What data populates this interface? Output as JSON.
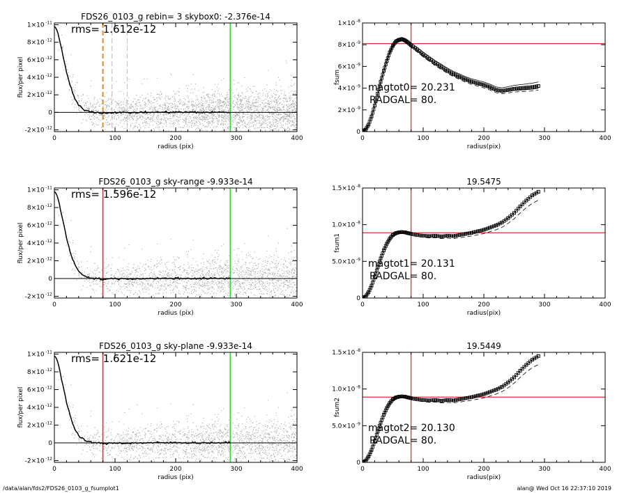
{
  "footer": {
    "left": "/data/alan/fds2/FDS26_0103_g_fsumplot1",
    "right": "alan@  Wed Oct 16 22:37:10 2019"
  },
  "chart_data": [
    {
      "type": "scatter",
      "title": "FDS26_0103_g rebin= 3    skybox0: -2.376e-14",
      "xlabel": "radius (pix)",
      "ylabel": "flux/per pixel",
      "xlim": [
        0,
        400
      ],
      "ylim": [
        -2.2e-12,
        1.02e-11
      ],
      "xticks": [
        0,
        100,
        200,
        300,
        400
      ],
      "yticks": [
        {
          "value": -2e-12,
          "m": "-2",
          "e": "-12"
        },
        {
          "value": 0,
          "m": "0",
          "e": ""
        },
        {
          "value": 2e-12,
          "m": "2",
          "e": "-12"
        },
        {
          "value": 4e-12,
          "m": "4",
          "e": "-12"
        },
        {
          "value": 6e-12,
          "m": "6",
          "e": "-12"
        },
        {
          "value": 8e-12,
          "m": "8",
          "e": "-12"
        },
        {
          "value": 1e-11,
          "m": "1",
          "e": "-11"
        }
      ],
      "annotation": "rms= 1.612e-12",
      "vlines": [
        {
          "x": 80,
          "color": "#e08a2a",
          "style": "dashed"
        },
        {
          "x": 95,
          "color": "#bbbbbb",
          "style": "dashed"
        },
        {
          "x": 120,
          "color": "#bbbbbb",
          "style": "dashed"
        },
        {
          "x": 290,
          "color": "#3cd23c",
          "style": "solid"
        }
      ],
      "profile": [
        [
          0,
          9.8e-12
        ],
        [
          3,
          9.6e-12
        ],
        [
          6,
          9e-12
        ],
        [
          10,
          7.8e-12
        ],
        [
          15,
          6.2e-12
        ],
        [
          20,
          4.6e-12
        ],
        [
          25,
          3.3e-12
        ],
        [
          30,
          2.2e-12
        ],
        [
          35,
          1.4e-12
        ],
        [
          40,
          8e-13
        ],
        [
          45,
          5e-13
        ],
        [
          50,
          3e-13
        ],
        [
          55,
          1.5e-13
        ],
        [
          60,
          8e-14
        ],
        [
          70,
          0
        ],
        [
          80,
          -1e-13
        ],
        [
          100,
          0
        ],
        [
          120,
          -5e-14
        ],
        [
          150,
          0
        ],
        [
          200,
          2e-14
        ],
        [
          250,
          0
        ],
        [
          290,
          1e-14
        ]
      ]
    },
    {
      "type": "line",
      "title": "",
      "xlabel": "radius(pix)",
      "ylabel": "fsum",
      "xlim": [
        0,
        400
      ],
      "ylim": [
        0,
        1e-08
      ],
      "xticks": [
        0,
        100,
        200,
        300,
        400
      ],
      "yticks": [
        {
          "value": 0,
          "m": "0",
          "e": ""
        },
        {
          "value": 2e-09,
          "m": "2",
          "e": "-9"
        },
        {
          "value": 4e-09,
          "m": "4",
          "e": "-9"
        },
        {
          "value": 6e-09,
          "m": "6",
          "e": "-9"
        },
        {
          "value": 8e-09,
          "m": "8",
          "e": "-9"
        },
        {
          "value": 1e-08,
          "m": "1",
          "e": "-8"
        }
      ],
      "hline": 8.1e-09,
      "vline": 80,
      "annotations": [
        "magtot0=  20.231",
        "RADGAL=    80."
      ],
      "series": [
        {
          "x": [
            0,
            5,
            10,
            15,
            20,
            25,
            30,
            35,
            40,
            45,
            50,
            55,
            60,
            65,
            70,
            75,
            80,
            90,
            100,
            110,
            120,
            130,
            140,
            150,
            160,
            170,
            180,
            190,
            200,
            210,
            220,
            230,
            240,
            250,
            260,
            270,
            280,
            290
          ],
          "y": [
            0,
            1.8e-10,
            6.5e-10,
            1.4e-09,
            2.4e-09,
            3.5e-09,
            4.6e-09,
            5.6e-09,
            6.5e-09,
            7.3e-09,
            7.9e-09,
            8.3e-09,
            8.45e-09,
            8.5e-09,
            8.4e-09,
            8.2e-09,
            7.95e-09,
            7.55e-09,
            7.1e-09,
            6.7e-09,
            6.3e-09,
            5.95e-09,
            5.6e-09,
            5.3e-09,
            5.05e-09,
            4.8e-09,
            4.6e-09,
            4.45e-09,
            4.3e-09,
            4.1e-09,
            3.85e-09,
            3.75e-09,
            3.85e-09,
            3.95e-09,
            4e-09,
            4.05e-09,
            4.1e-09,
            4.2e-09
          ]
        }
      ]
    },
    {
      "type": "scatter",
      "title": "FDS26_0103_g sky-range -9.933e-14",
      "xlabel": "radius (pix)",
      "ylabel": "flux/per pixel",
      "xlim": [
        0,
        400
      ],
      "ylim": [
        -2.2e-12,
        1.02e-11
      ],
      "xticks": [
        0,
        100,
        200,
        300,
        400
      ],
      "yticks": [
        {
          "value": -2e-12,
          "m": "-2",
          "e": "-12"
        },
        {
          "value": 0,
          "m": "0",
          "e": ""
        },
        {
          "value": 2e-12,
          "m": "2",
          "e": "-12"
        },
        {
          "value": 4e-12,
          "m": "4",
          "e": "-12"
        },
        {
          "value": 6e-12,
          "m": "6",
          "e": "-12"
        },
        {
          "value": 8e-12,
          "m": "8",
          "e": "-12"
        },
        {
          "value": 1e-11,
          "m": "1",
          "e": "-11"
        }
      ],
      "annotation": "rms= 1.596e-12",
      "vlines": [
        {
          "x": 80,
          "color": "#e03030",
          "style": "solid"
        },
        {
          "x": 290,
          "color": "#3cd23c",
          "style": "solid"
        }
      ],
      "profile": [
        [
          0,
          9.8e-12
        ],
        [
          3,
          9.6e-12
        ],
        [
          6,
          9e-12
        ],
        [
          10,
          7.8e-12
        ],
        [
          15,
          6.2e-12
        ],
        [
          20,
          4.6e-12
        ],
        [
          25,
          3.3e-12
        ],
        [
          30,
          2.2e-12
        ],
        [
          35,
          1.4e-12
        ],
        [
          40,
          8e-13
        ],
        [
          45,
          5e-13
        ],
        [
          50,
          3e-13
        ],
        [
          55,
          1.5e-13
        ],
        [
          60,
          8e-14
        ],
        [
          70,
          0
        ],
        [
          80,
          -1e-13
        ],
        [
          100,
          0
        ],
        [
          120,
          -5e-14
        ],
        [
          150,
          0
        ],
        [
          200,
          2e-14
        ],
        [
          250,
          0
        ],
        [
          290,
          1e-14
        ]
      ]
    },
    {
      "type": "line",
      "title": "19.5475",
      "xlabel": "radius(pix)",
      "ylabel": "fsum1",
      "xlim": [
        0,
        400
      ],
      "ylim": [
        0,
        1.5e-08
      ],
      "xticks": [
        0,
        100,
        200,
        300,
        400
      ],
      "yticks": [
        {
          "value": 0,
          "m": "0",
          "e": ""
        },
        {
          "value": 5e-09,
          "m": "5.0",
          "e": "-9"
        },
        {
          "value": 1e-08,
          "m": "1.0",
          "e": "-8"
        },
        {
          "value": 1.5e-08,
          "m": "1.5",
          "e": "-8"
        }
      ],
      "hline": 8.9e-09,
      "vline": 80,
      "annotations": [
        "magtot1=  20.131",
        "RADGAL=    80."
      ],
      "series": [
        {
          "x": [
            0,
            5,
            10,
            15,
            20,
            25,
            30,
            35,
            40,
            45,
            50,
            55,
            60,
            65,
            70,
            75,
            80,
            90,
            100,
            110,
            120,
            130,
            140,
            150,
            160,
            170,
            180,
            190,
            200,
            210,
            220,
            230,
            240,
            250,
            260,
            270,
            280,
            290
          ],
          "y": [
            0,
            2e-10,
            8e-10,
            1.7e-09,
            2.9e-09,
            4.2e-09,
            5.4e-09,
            6.5e-09,
            7.4e-09,
            8.1e-09,
            8.6e-09,
            8.85e-09,
            8.95e-09,
            9e-09,
            8.95e-09,
            8.85e-09,
            8.75e-09,
            8.6e-09,
            8.5e-09,
            8.45e-09,
            8.5e-09,
            8.4e-09,
            8.5e-09,
            8.45e-09,
            8.6e-09,
            8.75e-09,
            8.9e-09,
            9.1e-09,
            9.3e-09,
            9.6e-09,
            9.9e-09,
            1.03e-08,
            1.09e-08,
            1.16e-08,
            1.25e-08,
            1.33e-08,
            1.4e-08,
            1.45e-08
          ]
        }
      ]
    },
    {
      "type": "scatter",
      "title": "FDS26_0103_g sky-plane -9.933e-14",
      "xlabel": "radius (pix)",
      "ylabel": "flux/per pixel",
      "xlim": [
        0,
        400
      ],
      "ylim": [
        -2.2e-12,
        1.02e-11
      ],
      "xticks": [
        0,
        100,
        200,
        300,
        400
      ],
      "yticks": [
        {
          "value": -2e-12,
          "m": "-2",
          "e": "-12"
        },
        {
          "value": 0,
          "m": "0",
          "e": ""
        },
        {
          "value": 2e-12,
          "m": "2",
          "e": "-12"
        },
        {
          "value": 4e-12,
          "m": "4",
          "e": "-12"
        },
        {
          "value": 6e-12,
          "m": "6",
          "e": "-12"
        },
        {
          "value": 8e-12,
          "m": "8",
          "e": "-12"
        },
        {
          "value": 1e-11,
          "m": "1",
          "e": "-11"
        }
      ],
      "annotation": "rms= 1.621e-12",
      "vlines": [
        {
          "x": 80,
          "color": "#e03030",
          "style": "solid"
        },
        {
          "x": 290,
          "color": "#3cd23c",
          "style": "solid"
        }
      ],
      "profile": [
        [
          0,
          9.8e-12
        ],
        [
          3,
          9.6e-12
        ],
        [
          6,
          9e-12
        ],
        [
          10,
          7.8e-12
        ],
        [
          15,
          6.2e-12
        ],
        [
          20,
          4.6e-12
        ],
        [
          25,
          3.3e-12
        ],
        [
          30,
          2.2e-12
        ],
        [
          35,
          1.4e-12
        ],
        [
          40,
          8e-13
        ],
        [
          45,
          5e-13
        ],
        [
          50,
          3e-13
        ],
        [
          55,
          1.5e-13
        ],
        [
          60,
          8e-14
        ],
        [
          70,
          0
        ],
        [
          80,
          -1e-13
        ],
        [
          100,
          0
        ],
        [
          120,
          -5e-14
        ],
        [
          150,
          0
        ],
        [
          200,
          2e-14
        ],
        [
          250,
          0
        ],
        [
          290,
          1e-14
        ]
      ]
    },
    {
      "type": "line",
      "title": "19.5449",
      "xlabel": "radius(pix)",
      "ylabel": "fsum2",
      "xlim": [
        0,
        400
      ],
      "ylim": [
        0,
        1.5e-08
      ],
      "xticks": [
        0,
        100,
        200,
        300,
        400
      ],
      "yticks": [
        {
          "value": 0,
          "m": "0",
          "e": ""
        },
        {
          "value": 5e-09,
          "m": "5.0",
          "e": "-9"
        },
        {
          "value": 1e-08,
          "m": "1.0",
          "e": "-8"
        },
        {
          "value": 1.5e-08,
          "m": "1.5",
          "e": "-8"
        }
      ],
      "hline": 8.9e-09,
      "vline": 80,
      "annotations": [
        "magtot2=  20.130",
        "RADGAL=    80."
      ],
      "series": [
        {
          "x": [
            0,
            5,
            10,
            15,
            20,
            25,
            30,
            35,
            40,
            45,
            50,
            55,
            60,
            65,
            70,
            75,
            80,
            90,
            100,
            110,
            120,
            130,
            140,
            150,
            160,
            170,
            180,
            190,
            200,
            210,
            220,
            230,
            240,
            250,
            260,
            270,
            280,
            290
          ],
          "y": [
            0,
            2e-10,
            8e-10,
            1.7e-09,
            2.9e-09,
            4.2e-09,
            5.4e-09,
            6.5e-09,
            7.4e-09,
            8.1e-09,
            8.6e-09,
            8.85e-09,
            8.95e-09,
            9e-09,
            8.95e-09,
            8.85e-09,
            8.75e-09,
            8.6e-09,
            8.5e-09,
            8.45e-09,
            8.5e-09,
            8.4e-09,
            8.5e-09,
            8.45e-09,
            8.6e-09,
            8.75e-09,
            8.9e-09,
            9.1e-09,
            9.3e-09,
            9.6e-09,
            9.9e-09,
            1.03e-08,
            1.09e-08,
            1.16e-08,
            1.25e-08,
            1.33e-08,
            1.4e-08,
            1.45e-08
          ]
        }
      ]
    }
  ]
}
